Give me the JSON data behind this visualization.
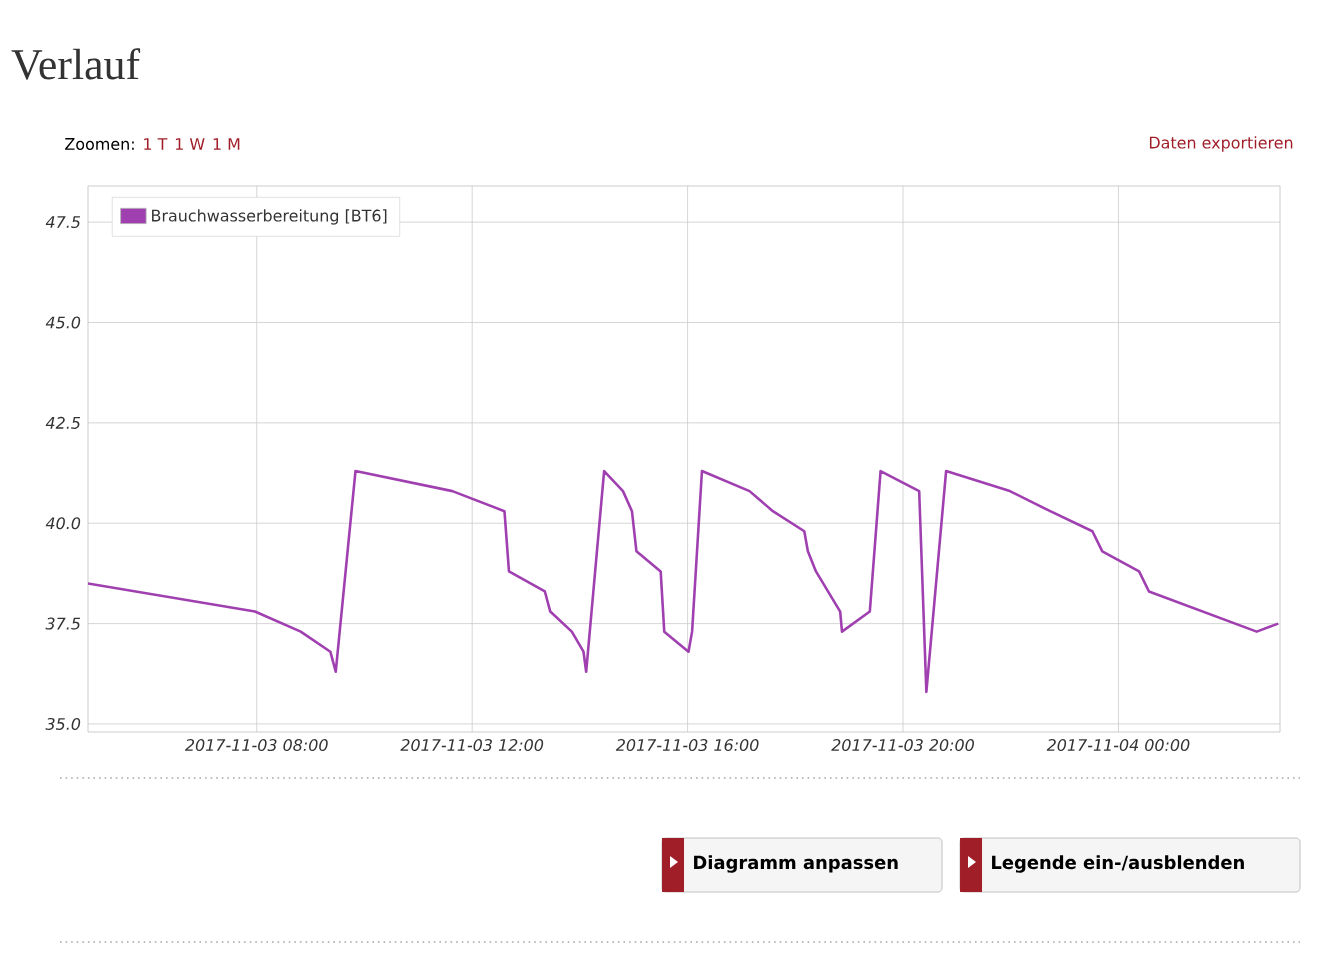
{
  "chart_data": {
    "type": "line",
    "title": "Verlauf",
    "annotations": [
      "Zoomen:",
      "1 T",
      "1 W",
      "1 M",
      "Daten exportieren",
      "Diagramm anpassen",
      "Legende ein-/ausblenden"
    ],
    "series": [
      {
        "name": "Brauchwasserbereitung [BT6]",
        "color": "#a040b0",
        "x": [
          "2017-11-03T04:52",
          "2017-11-03T07:58",
          "2017-11-03T08:49",
          "2017-11-03T09:22",
          "2017-11-03T09:28",
          "2017-11-03T09:50",
          "2017-11-03T11:38",
          "2017-11-03T12:36",
          "2017-11-03T12:41",
          "2017-11-03T13:21",
          "2017-11-03T13:27",
          "2017-11-03T13:51",
          "2017-11-03T14:04",
          "2017-11-03T14:07",
          "2017-11-03T14:27",
          "2017-11-03T14:48",
          "2017-11-03T14:58",
          "2017-11-03T15:03",
          "2017-11-03T15:30",
          "2017-11-03T15:34",
          "2017-11-03T16:01",
          "2017-11-03T16:05",
          "2017-11-03T16:16",
          "2017-11-03T17:09",
          "2017-11-03T17:35",
          "2017-11-03T18:10",
          "2017-11-03T18:14",
          "2017-11-03T18:23",
          "2017-11-03T18:50",
          "2017-11-03T18:52",
          "2017-11-03T19:23",
          "2017-11-03T19:35",
          "2017-11-03T20:18",
          "2017-11-03T20:26",
          "2017-11-03T20:48",
          "2017-11-03T21:59",
          "2017-11-03T22:44",
          "2017-11-03T23:31",
          "2017-11-03T23:42",
          "2017-11-04T00:23",
          "2017-11-04T00:34",
          "2017-11-04T02:34",
          "2017-11-04T02:58"
        ],
        "values": [
          38.5,
          37.8,
          37.3,
          36.8,
          36.3,
          41.3,
          40.8,
          40.3,
          38.8,
          38.3,
          37.8,
          37.3,
          36.8,
          36.3,
          41.3,
          40.8,
          40.3,
          39.3,
          38.8,
          37.3,
          36.8,
          37.3,
          41.3,
          40.8,
          40.3,
          39.8,
          39.3,
          38.8,
          37.8,
          37.3,
          37.8,
          41.3,
          40.8,
          35.8,
          41.3,
          40.8,
          40.3,
          39.8,
          39.3,
          38.8,
          38.3,
          37.3,
          37.5
        ]
      }
    ],
    "xlim": [
      "2017-11-03T04:52",
      "2017-11-04T03:00"
    ],
    "xticks": [
      {
        "value": "2017-11-03T08:00",
        "label": "2017-11-03 08:00"
      },
      {
        "value": "2017-11-03T12:00",
        "label": "2017-11-03 12:00"
      },
      {
        "value": "2017-11-03T16:00",
        "label": "2017-11-03 16:00"
      },
      {
        "value": "2017-11-03T20:00",
        "label": "2017-11-03 20:00"
      },
      {
        "value": "2017-11-04T00:00",
        "label": "2017-11-04 00:00"
      }
    ],
    "ylim": [
      34.8,
      48.4
    ],
    "yticks": [
      {
        "value": 35,
        "label": "35.0"
      },
      {
        "value": 37.5,
        "label": "37.5"
      },
      {
        "value": 40,
        "label": "40.0"
      },
      {
        "value": 42.5,
        "label": "42.5"
      },
      {
        "value": 45,
        "label": "45.0"
      },
      {
        "value": 47.5,
        "label": "47.5"
      }
    ],
    "grid": true,
    "legend": "top left",
    "marker": "none",
    "line_style": "solid"
  }
}
